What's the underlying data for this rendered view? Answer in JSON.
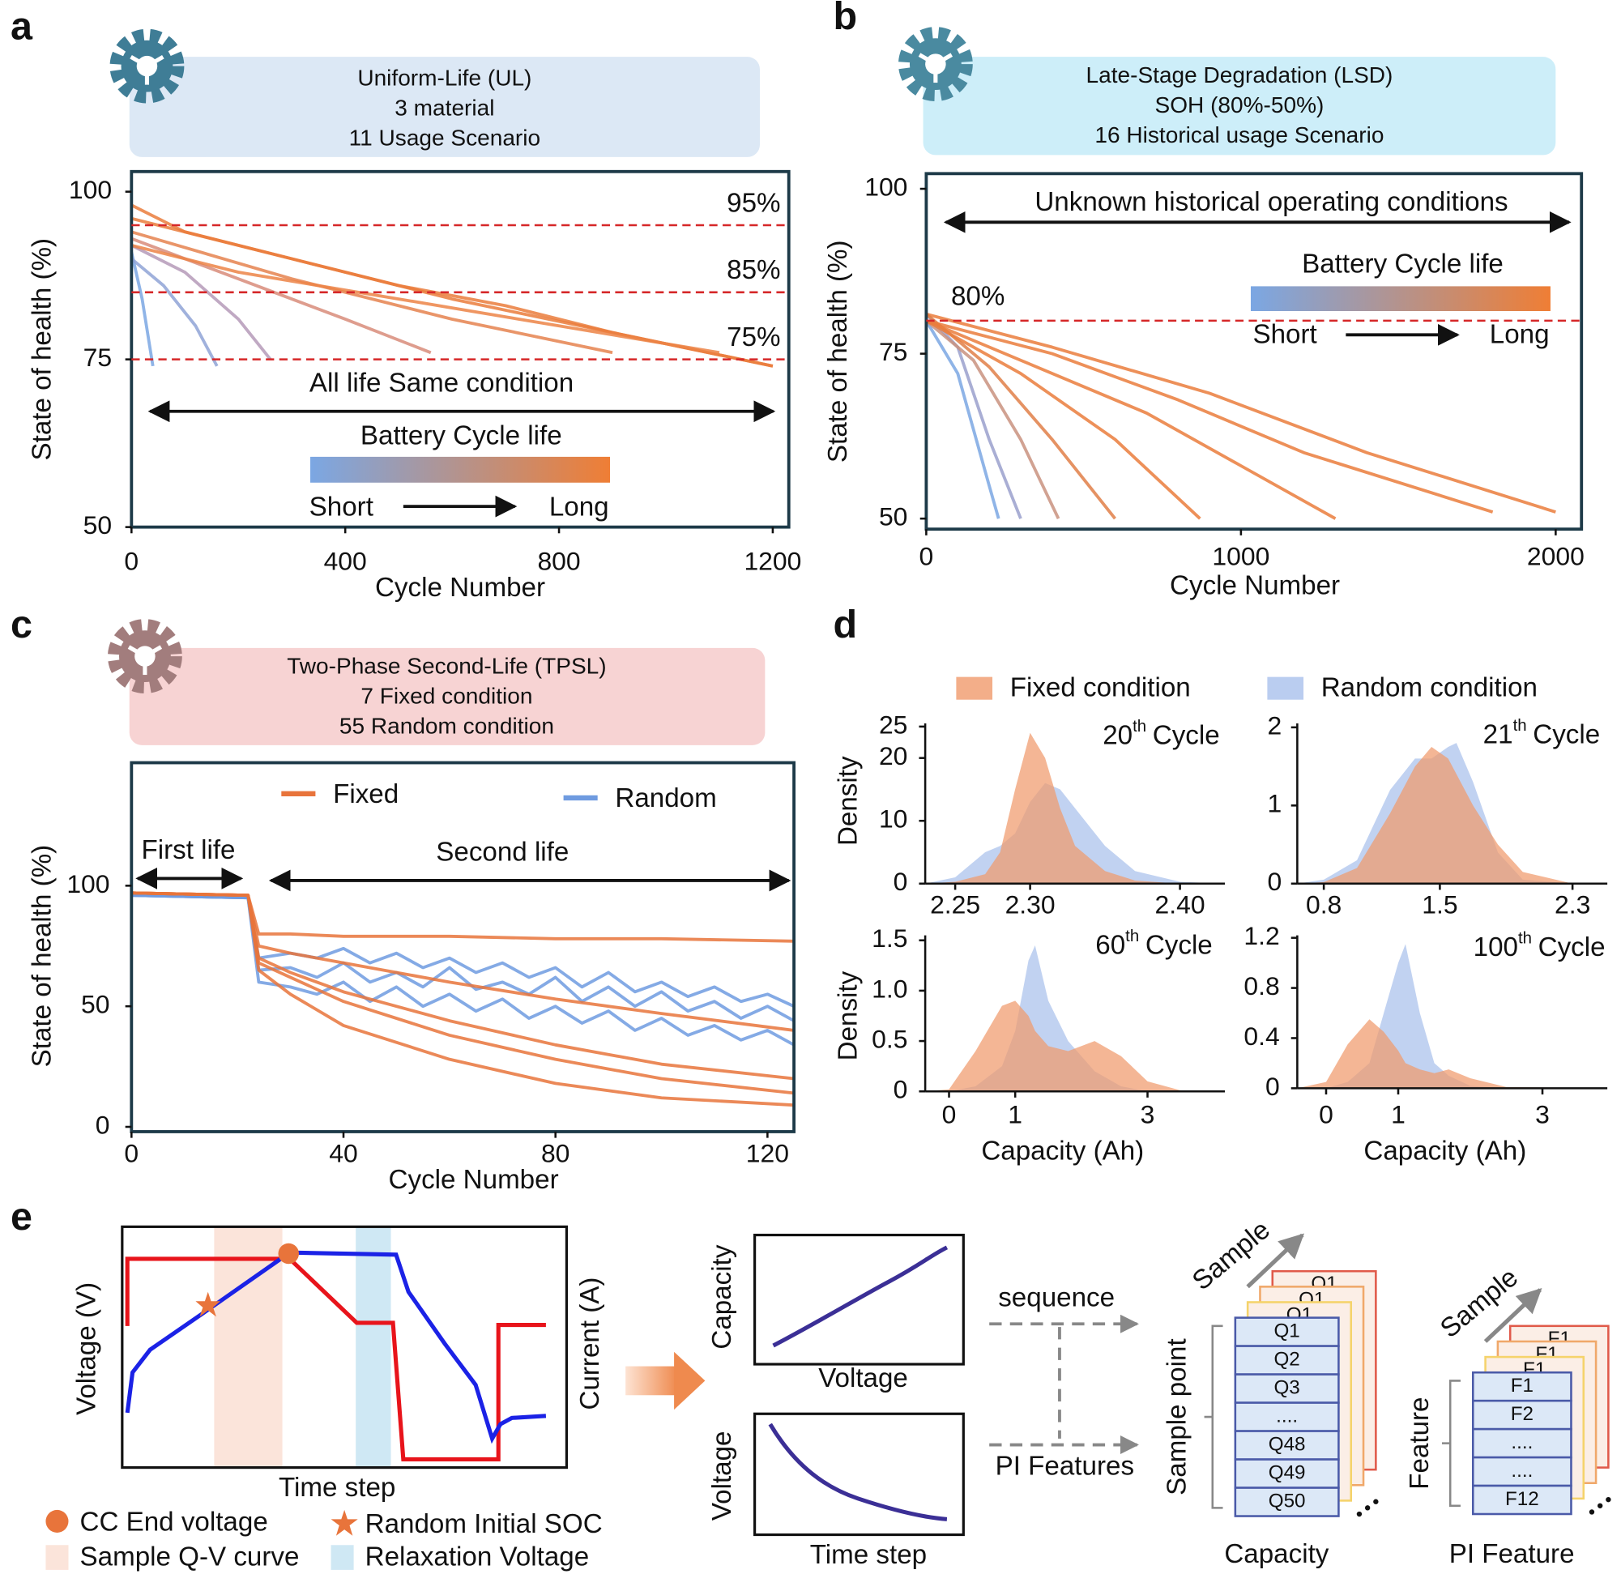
{
  "chart_data": [
    {
      "type": "line",
      "label": "a",
      "info": {
        "lines": [
          "Uniform-Life (UL)",
          "3 material",
          "11 Usage Scenario"
        ],
        "color": "#dce8f5",
        "icon_color": "#3f7d96"
      },
      "ylabel": "State of health (%)",
      "xlabel": "Cycle Number",
      "xlim": [
        0,
        1230
      ],
      "ylim": [
        50,
        103
      ],
      "xticks": [
        0,
        400,
        800,
        1200
      ],
      "yticks": [
        50,
        75,
        100
      ],
      "hlines": [
        {
          "value": 95,
          "label": "95%"
        },
        {
          "value": 85,
          "label": "85%"
        },
        {
          "value": 75,
          "label": "75%"
        }
      ],
      "hline_color": "#d62728",
      "annotations": [
        "All life Same condition"
      ],
      "colorbar": {
        "title": "Battery Cycle life",
        "low": "Short",
        "high": "Long",
        "colors": [
          "#7ba7e3",
          "#ef7e35"
        ]
      },
      "series": [
        {
          "color": "#7ba7e3",
          "x": [
            0,
            20,
            40
          ],
          "values": [
            91,
            84,
            74
          ]
        },
        {
          "color": "#8fa3d6",
          "x": [
            0,
            60,
            120,
            160
          ],
          "values": [
            90,
            86,
            80,
            74
          ]
        },
        {
          "color": "#b59ab8",
          "x": [
            0,
            100,
            200,
            260
          ],
          "values": [
            92,
            88,
            81,
            75
          ]
        },
        {
          "color": "#d88c7a",
          "x": [
            0,
            200,
            400,
            560
          ],
          "values": [
            93,
            87,
            81,
            76
          ]
        },
        {
          "color": "#e5834f",
          "x": [
            0,
            300,
            600,
            900
          ],
          "values": [
            94,
            87,
            81,
            76
          ]
        },
        {
          "color": "#ea7d3c",
          "x": [
            0,
            300,
            600,
            900,
            1200
          ],
          "values": [
            96,
            90,
            84,
            79,
            74
          ]
        },
        {
          "color": "#ea7d3c",
          "x": [
            0,
            100,
            300,
            500,
            700,
            900,
            1200
          ],
          "values": [
            98,
            94,
            90,
            86,
            83,
            79,
            74
          ]
        },
        {
          "color": "#ec8446",
          "x": [
            0,
            200,
            500,
            800,
            1100
          ],
          "values": [
            92,
            88,
            84,
            80,
            76
          ]
        }
      ]
    },
    {
      "type": "line",
      "label": "b",
      "info": {
        "lines": [
          "Late-Stage Degradation (LSD)",
          "SOH (80%-50%)",
          "16 Historical usage Scenario"
        ],
        "color": "#cdeef9",
        "icon_color": "#4a8aa0"
      },
      "ylabel": "State of health (%)",
      "xlabel": "Cycle Number",
      "xlim": [
        0,
        2082
      ],
      "ylim": [
        48.4,
        102.3
      ],
      "xticks": [
        0,
        1000,
        2000
      ],
      "yticks": [
        50,
        75,
        100
      ],
      "hlines": [
        {
          "value": 80,
          "label": "80%"
        }
      ],
      "hline_color": "#d62728",
      "annotations": [
        "Unknown historical operating conditions"
      ],
      "colorbar": {
        "title": "Battery Cycle life",
        "low": "Short",
        "high": "Long",
        "colors": [
          "#7ba7e3",
          "#ef7e35"
        ]
      },
      "series": [
        {
          "color": "#7ba7e3",
          "x": [
            0,
            100,
            200,
            230
          ],
          "values": [
            80,
            72,
            55,
            50
          ]
        },
        {
          "color": "#9aa0cc",
          "x": [
            0,
            100,
            200,
            300
          ],
          "values": [
            81,
            76,
            62,
            50
          ]
        },
        {
          "color": "#c9927f",
          "x": [
            0,
            150,
            300,
            420
          ],
          "values": [
            80,
            74,
            62,
            50
          ]
        },
        {
          "color": "#e07f48",
          "x": [
            0,
            200,
            400,
            600
          ],
          "values": [
            81,
            73,
            62,
            50
          ]
        },
        {
          "color": "#ea7d3c",
          "x": [
            0,
            300,
            600,
            870
          ],
          "values": [
            80,
            72,
            62,
            50
          ]
        },
        {
          "color": "#ea7d3c",
          "x": [
            0,
            300,
            700,
            1000,
            1300
          ],
          "values": [
            80,
            74,
            66,
            58,
            50
          ]
        },
        {
          "color": "#ea7d3c",
          "x": [
            0,
            400,
            800,
            1200,
            1800
          ],
          "values": [
            80,
            75,
            68,
            60,
            51
          ]
        },
        {
          "color": "#ea7d3c",
          "x": [
            0,
            400,
            900,
            1400,
            2000
          ],
          "values": [
            81,
            76,
            69,
            60,
            51
          ]
        }
      ]
    },
    {
      "type": "line",
      "label": "c",
      "info": {
        "lines": [
          "Two-Phase Second-Life (TPSL)",
          "7 Fixed condition",
          "55 Random condition"
        ],
        "color": "#f7d3d3",
        "icon_color": "#a27d7d"
      },
      "ylabel": "State of health (%)",
      "xlabel": "Cycle Number",
      "xlim": [
        0,
        125
      ],
      "ylim": [
        -2,
        151
      ],
      "xticks": [
        0,
        40,
        80,
        120
      ],
      "yticks": [
        0,
        50,
        100
      ],
      "annotations": [
        "First life",
        "Second life"
      ],
      "series": [
        {
          "name": "Random",
          "color": "#6f9be0",
          "curves": [
            {
              "x": [
                0,
                22,
                24,
                30,
                35,
                40,
                45,
                50,
                55,
                60,
                65,
                70,
                75,
                80,
                85,
                90,
                95,
                100,
                105,
                110,
                115,
                120,
                125
              ],
              "values": [
                96,
                95,
                65,
                66,
                62,
                68,
                60,
                64,
                58,
                66,
                57,
                60,
                55,
                62,
                52,
                58,
                50,
                56,
                48,
                52,
                45,
                50,
                44
              ]
            },
            {
              "x": [
                0,
                22,
                24,
                30,
                35,
                40,
                45,
                50,
                55,
                60,
                65,
                70,
                75,
                80,
                85,
                90,
                95,
                100,
                105,
                110,
                115,
                120,
                125
              ],
              "values": [
                96,
                95,
                60,
                58,
                55,
                60,
                52,
                58,
                50,
                55,
                48,
                53,
                45,
                50,
                43,
                48,
                40,
                45,
                38,
                42,
                36,
                40,
                34
              ]
            },
            {
              "x": [
                0,
                22,
                24,
                30,
                35,
                40,
                45,
                50,
                55,
                60,
                65,
                70,
                75,
                80,
                85,
                90,
                95,
                100,
                105,
                110,
                115,
                120,
                125
              ],
              "values": [
                96,
                95,
                70,
                72,
                70,
                74,
                68,
                72,
                66,
                70,
                64,
                68,
                62,
                66,
                58,
                64,
                56,
                60,
                54,
                58,
                52,
                55,
                50
              ]
            }
          ]
        },
        {
          "name": "Fixed",
          "color": "#e8743b",
          "curves": [
            {
              "x": [
                0,
                22,
                24,
                30,
                40,
                60,
                80,
                100,
                125
              ],
              "values": [
                97,
                96,
                75,
                72,
                68,
                60,
                53,
                47,
                40
              ]
            },
            {
              "x": [
                0,
                22,
                24,
                30,
                40,
                60,
                80,
                100,
                125
              ],
              "values": [
                97,
                96,
                80,
                80,
                79,
                79,
                78,
                78,
                77
              ]
            },
            {
              "x": [
                0,
                22,
                24,
                30,
                40,
                60,
                80,
                100,
                125
              ],
              "values": [
                97,
                96,
                68,
                62,
                52,
                38,
                28,
                20,
                14
              ]
            },
            {
              "x": [
                0,
                22,
                24,
                30,
                40,
                60,
                80,
                100,
                125
              ],
              "values": [
                97,
                96,
                70,
                64,
                56,
                44,
                34,
                26,
                20
              ]
            },
            {
              "x": [
                0,
                22,
                24,
                30,
                40,
                60,
                80,
                100,
                125
              ],
              "values": [
                97,
                96,
                65,
                55,
                42,
                28,
                18,
                12,
                9
              ]
            }
          ]
        }
      ]
    },
    {
      "type": "area",
      "label": "d",
      "title": {
        "main": "20",
        "sup": "th",
        "rest": "Cycle"
      },
      "ylabel": "Density",
      "xlim": [
        2.23,
        2.43
      ],
      "ylim": [
        0,
        25.5
      ],
      "xticks": [
        2.25,
        {
          "value": 2.3,
          "label": "2.30"
        },
        {
          "value": 2.4,
          "label": "2.40"
        }
      ],
      "yticks": [
        0,
        10,
        20,
        25
      ],
      "x": [
        2.23,
        2.25,
        2.27,
        2.28,
        2.29,
        2.3,
        2.31,
        2.32,
        2.33,
        2.35,
        2.37,
        2.4,
        2.43
      ],
      "series": [
        {
          "name": "Random condition",
          "color": "#a9c1ec",
          "values": [
            0,
            1,
            5,
            6,
            8,
            13,
            16,
            15,
            12,
            6,
            2,
            0.3,
            0
          ]
        },
        {
          "name": "Fixed condition",
          "color": "#f09a6c",
          "values": [
            0,
            0.3,
            1.5,
            5,
            15,
            24,
            20,
            12,
            6,
            2,
            0.5,
            0,
            0
          ]
        }
      ]
    },
    {
      "type": "area",
      "title": {
        "main": "21",
        "sup": "th",
        "rest": "Cycle"
      },
      "xlim": [
        0.64,
        2.51
      ],
      "ylim": [
        0,
        2.05
      ],
      "xticks": [
        0.8,
        1.5,
        2.3
      ],
      "yticks": [
        0,
        1,
        2
      ],
      "x": [
        0.64,
        0.8,
        1.0,
        1.2,
        1.35,
        1.45,
        1.55,
        1.6,
        1.7,
        1.85,
        2.0,
        2.3,
        2.5
      ],
      "series": [
        {
          "color": "#a9c1ec",
          "values": [
            0,
            0.05,
            0.3,
            1.2,
            1.6,
            1.6,
            1.75,
            1.8,
            1.3,
            0.4,
            0.05,
            0,
            0
          ]
        },
        {
          "color": "#f09a6c",
          "values": [
            0,
            0.02,
            0.2,
            0.9,
            1.5,
            1.75,
            1.6,
            1.4,
            1.0,
            0.5,
            0.15,
            0,
            0
          ]
        }
      ]
    },
    {
      "type": "area",
      "title": {
        "main": "60",
        "sup": "th",
        "rest": "Cycle"
      },
      "ylabel": "Density",
      "xlabel": "Capacity (Ah)",
      "xlim": [
        -0.36,
        4.17
      ],
      "ylim": [
        0,
        1.55
      ],
      "xticks": [
        0,
        1,
        3
      ],
      "yticks": [
        0,
        0.5,
        {
          "value": 1,
          "label": "1.0"
        },
        1.5
      ],
      "x": [
        -0.36,
        0,
        0.4,
        0.8,
        1.0,
        1.2,
        1.3,
        1.5,
        1.8,
        2.2,
        2.6,
        3.0,
        3.5,
        4.17
      ],
      "series": [
        {
          "color": "#a9c1ec",
          "values": [
            0,
            0,
            0.05,
            0.25,
            0.6,
            1.3,
            1.45,
            0.9,
            0.5,
            0.2,
            0.05,
            0,
            0,
            0
          ]
        },
        {
          "color": "#f09a6c",
          "values": [
            0,
            0.02,
            0.4,
            0.85,
            0.9,
            0.75,
            0.6,
            0.45,
            0.4,
            0.5,
            0.35,
            0.1,
            0.01,
            0
          ]
        }
      ]
    },
    {
      "type": "area",
      "title": {
        "main": "100",
        "sup": "th",
        "rest": "Cycle"
      },
      "xlabel": "Capacity (Ah)",
      "xlim": [
        -0.4,
        3.9
      ],
      "ylim": [
        0,
        1.22
      ],
      "xticks": [
        0,
        1,
        3
      ],
      "yticks": [
        0,
        0.4,
        0.8,
        1.2
      ],
      "x": [
        -0.4,
        0,
        0.3,
        0.6,
        0.8,
        1.0,
        1.1,
        1.3,
        1.5,
        1.7,
        2.0,
        2.5,
        3.9
      ],
      "series": [
        {
          "color": "#a9c1ec",
          "values": [
            0,
            0,
            0.05,
            0.2,
            0.6,
            1.0,
            1.15,
            0.6,
            0.2,
            0.1,
            0.02,
            0,
            0
          ]
        },
        {
          "color": "#f09a6c",
          "values": [
            0,
            0.05,
            0.35,
            0.55,
            0.45,
            0.3,
            0.2,
            0.15,
            0.12,
            0.15,
            0.08,
            0.01,
            0
          ]
        }
      ]
    }
  ],
  "diagram": {
    "label": "e",
    "profile": {
      "ylabel": "Voltage (V)",
      "y2label": "Current (A)",
      "xlabel": "Time step"
    },
    "legend": [
      "CC End voltage",
      "Random Initial SOC",
      "Sample Q-V curve",
      "Relaxation Voltage"
    ],
    "qv": {
      "ylabel": "Capacity",
      "xlabel": "Voltage"
    },
    "relax": {
      "ylabel": "Voltage",
      "xlabel": "Time step"
    },
    "flows": [
      "sequence",
      "PI Features"
    ],
    "capacity_stack": {
      "axis": "Sample",
      "side": "Sample point",
      "back": [
        "Q1",
        "Q1",
        "Q1"
      ],
      "cells": [
        "Q1",
        "Q2",
        "Q3",
        "....",
        "Q48",
        "Q49",
        "Q50"
      ],
      "caption": "Capacity"
    },
    "feature_stack": {
      "axis": "Sample",
      "side": "Feature",
      "back": [
        "F1",
        "F1",
        "F1"
      ],
      "cells": [
        "F1",
        "F2",
        "....",
        "....",
        "F12"
      ],
      "caption": "PI Feature"
    }
  }
}
